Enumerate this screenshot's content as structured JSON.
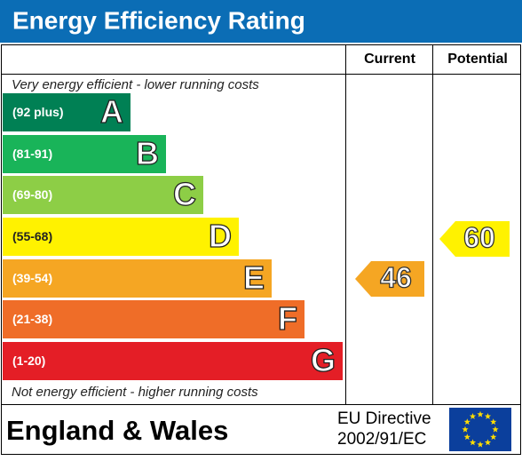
{
  "header": {
    "title": "Energy Efficiency Rating"
  },
  "columns": {
    "current": "Current",
    "potential": "Potential"
  },
  "top_note": "Very energy efficient - lower running costs",
  "bottom_note": "Not energy efficient - higher running costs",
  "bands": [
    {
      "range": "(92 plus)",
      "letter": "A"
    },
    {
      "range": "(81-91)",
      "letter": "B"
    },
    {
      "range": "(69-80)",
      "letter": "C"
    },
    {
      "range": "(55-68)",
      "letter": "D"
    },
    {
      "range": "(39-54)",
      "letter": "E"
    },
    {
      "range": "(21-38)",
      "letter": "F"
    },
    {
      "range": "(1-20)",
      "letter": "G"
    }
  ],
  "ratings": {
    "current": "46",
    "potential": "60"
  },
  "footer": {
    "region": "England & Wales",
    "directive": [
      "EU Directive",
      "2002/91/EC"
    ]
  }
}
